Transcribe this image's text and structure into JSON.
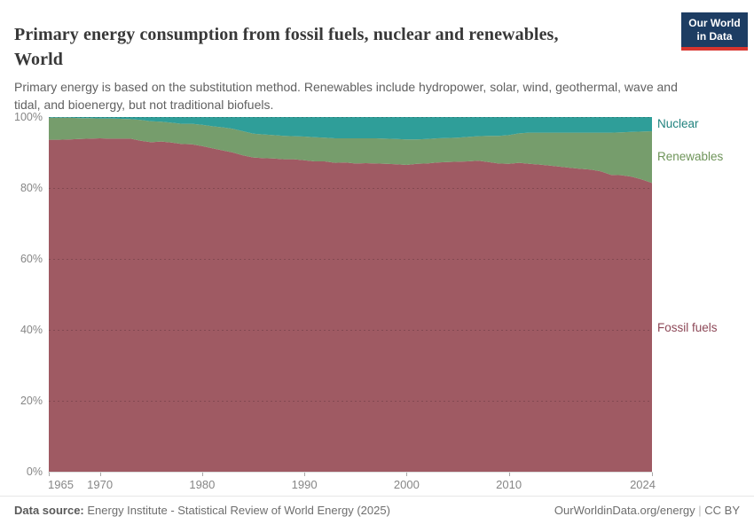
{
  "header": {
    "title_line1": "Primary energy consumption from fossil fuels, nuclear and renewables,",
    "title_line2": "World",
    "subtitle_line1": "Primary energy is based on the substitution method. Renewables include hydropower, solar, wind, geothermal, wave and",
    "subtitle_line2": "tidal, and bioenergy, but not traditional biofuels.",
    "logo": {
      "line1": "Our World",
      "line2": "in Data",
      "bg_color": "#1d3d63",
      "accent_color": "#d8352e"
    }
  },
  "chart_data": {
    "type": "area",
    "stacked": true,
    "normalized_percent": true,
    "title": "Primary energy consumption from fossil fuels, nuclear and renewables, World",
    "legend_position": "right",
    "grid": "dashed",
    "ylim": [
      0,
      100
    ],
    "x": [
      1965,
      1966,
      1967,
      1968,
      1969,
      1970,
      1971,
      1972,
      1973,
      1974,
      1975,
      1976,
      1977,
      1978,
      1979,
      1980,
      1981,
      1982,
      1983,
      1984,
      1985,
      1986,
      1987,
      1988,
      1989,
      1990,
      1991,
      1992,
      1993,
      1994,
      1995,
      1996,
      1997,
      1998,
      1999,
      2000,
      2001,
      2002,
      2003,
      2004,
      2005,
      2006,
      2007,
      2008,
      2009,
      2010,
      2011,
      2012,
      2013,
      2014,
      2015,
      2016,
      2017,
      2018,
      2019,
      2020,
      2021,
      2022,
      2023,
      2024
    ],
    "series": [
      {
        "name": "Fossil fuels",
        "color": "#9f5a63",
        "legend_color": "#8d4857",
        "values": [
          93.6,
          93.6,
          93.7,
          93.8,
          93.9,
          94.0,
          93.9,
          93.9,
          93.9,
          93.3,
          92.9,
          93.1,
          92.8,
          92.4,
          92.3,
          91.8,
          91.2,
          90.6,
          90.0,
          89.2,
          88.6,
          88.4,
          88.3,
          88.1,
          88.1,
          87.8,
          87.5,
          87.5,
          87.1,
          87.2,
          86.9,
          87.0,
          86.9,
          86.8,
          86.7,
          86.5,
          86.8,
          86.9,
          87.2,
          87.3,
          87.4,
          87.5,
          87.7,
          87.3,
          86.9,
          86.8,
          87.1,
          86.8,
          86.6,
          86.3,
          86.0,
          85.7,
          85.4,
          85.2,
          84.7,
          83.7,
          83.6,
          83.2,
          82.4,
          81.4
        ]
      },
      {
        "name": "Renewables",
        "color": "#769d6c",
        "legend_color": "#6e9459",
        "values": [
          6.2,
          6.2,
          6.1,
          5.9,
          5.8,
          5.6,
          5.7,
          5.6,
          5.5,
          5.9,
          5.9,
          5.6,
          5.6,
          5.7,
          5.8,
          6.0,
          6.2,
          6.5,
          6.7,
          6.8,
          6.7,
          6.7,
          6.6,
          6.6,
          6.5,
          6.7,
          6.8,
          6.7,
          6.9,
          6.8,
          7.1,
          7.0,
          7.1,
          7.1,
          7.1,
          7.2,
          6.9,
          6.9,
          6.8,
          6.8,
          6.8,
          6.9,
          6.9,
          7.4,
          7.8,
          8.1,
          8.3,
          8.8,
          9.0,
          9.3,
          9.6,
          9.9,
          10.2,
          10.4,
          10.9,
          11.9,
          12.1,
          12.6,
          13.5,
          14.6
        ]
      },
      {
        "name": "Nuclear",
        "color": "#2f9e99",
        "legend_color": "#20827e",
        "values": [
          0.2,
          0.2,
          0.2,
          0.3,
          0.3,
          0.4,
          0.4,
          0.5,
          0.6,
          0.8,
          1.2,
          1.3,
          1.6,
          1.9,
          1.9,
          2.2,
          2.6,
          2.9,
          3.3,
          4.0,
          4.7,
          4.9,
          5.1,
          5.3,
          5.4,
          5.5,
          5.7,
          5.8,
          6.0,
          6.0,
          6.0,
          6.0,
          6.0,
          6.1,
          6.2,
          6.3,
          6.3,
          6.2,
          6.0,
          5.9,
          5.8,
          5.6,
          5.4,
          5.3,
          5.3,
          5.1,
          4.6,
          4.4,
          4.4,
          4.4,
          4.4,
          4.4,
          4.4,
          4.4,
          4.4,
          4.4,
          4.3,
          4.2,
          4.1,
          4.0
        ]
      }
    ],
    "yticks": [
      {
        "value": 0,
        "label": "0%"
      },
      {
        "value": 20,
        "label": "20%"
      },
      {
        "value": 40,
        "label": "40%"
      },
      {
        "value": 60,
        "label": "60%"
      },
      {
        "value": 80,
        "label": "80%"
      },
      {
        "value": 100,
        "label": "100%"
      }
    ],
    "xticks": [
      1965,
      1970,
      1980,
      1990,
      2000,
      2010,
      2024
    ]
  },
  "footer": {
    "source_label": "Data source:",
    "source_value": "Energy Institute - Statistical Review of World Energy (2025)",
    "link": "OurWorldinData.org/energy",
    "separator": "|",
    "license": "CC BY"
  }
}
